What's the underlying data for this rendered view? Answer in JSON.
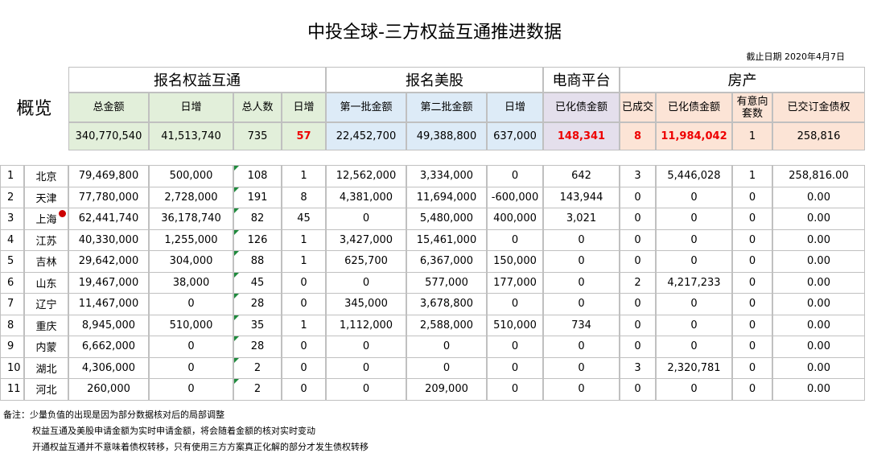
{
  "title": "中投全球-三方权益互通推进数据",
  "date": "截止日期 2020年4月7日",
  "summary": {
    "label": "概览",
    "groups": [
      "报名权益互通",
      "报名美股",
      "电商平台",
      "房产"
    ],
    "headers": [
      "总金额",
      "日增",
      "总人数",
      "日增",
      "第一批金额",
      "第二批金额",
      "日增",
      "已化债金额",
      "已成交",
      "已化债金额",
      "有意向套数",
      "已交订金债权"
    ],
    "values": [
      "340,770,540",
      "41,513,740",
      "735",
      "57",
      "22,452,700",
      "49,388,800",
      "637,000",
      "148,341",
      "8",
      "11,984,042",
      "1",
      "258,816"
    ]
  },
  "table": {
    "rows": [
      [
        "1",
        "北京",
        "79,469,800",
        "500,000",
        "108",
        "1",
        "12,562,000",
        "3,334,000",
        "0",
        "642",
        "3",
        "5,446,028",
        "1",
        "258,816.00"
      ],
      [
        "2",
        "天津",
        "77,780,000",
        "2,728,000",
        "191",
        "8",
        "4,381,000",
        "11,694,000",
        "-600,000",
        "143,944",
        "0",
        "0",
        "0",
        "0.00"
      ],
      [
        "3",
        "上海",
        "62,441,740",
        "36,178,740",
        "82",
        "45",
        "0",
        "5,480,000",
        "400,000",
        "3,021",
        "0",
        "0",
        "0",
        "0.00"
      ],
      [
        "4",
        "江苏",
        "40,330,000",
        "1,255,000",
        "126",
        "1",
        "3,427,000",
        "15,461,000",
        "0",
        "0",
        "0",
        "0",
        "0",
        "0.00"
      ],
      [
        "5",
        "吉林",
        "29,642,000",
        "304,000",
        "88",
        "1",
        "625,700",
        "6,367,000",
        "150,000",
        "0",
        "0",
        "0",
        "0",
        "0.00"
      ],
      [
        "6",
        "山东",
        "19,467,000",
        "38,000",
        "45",
        "0",
        "0",
        "577,000",
        "177,000",
        "0",
        "2",
        "4,217,233",
        "0",
        "0.00"
      ],
      [
        "7",
        "辽宁",
        "11,467,000",
        "0",
        "28",
        "0",
        "345,000",
        "3,678,800",
        "0",
        "0",
        "0",
        "0",
        "0",
        "0.00"
      ],
      [
        "8",
        "重庆",
        "8,945,000",
        "510,000",
        "35",
        "1",
        "1,112,000",
        "2,588,000",
        "510,000",
        "734",
        "0",
        "0",
        "0",
        "0.00"
      ],
      [
        "9",
        "内蒙",
        "6,662,000",
        "0",
        "28",
        "0",
        "0",
        "0",
        "0",
        "0",
        "0",
        "0",
        "0",
        "0.00"
      ],
      [
        "10",
        "湖北",
        "4,306,000",
        "0",
        "2",
        "0",
        "0",
        "0",
        "0",
        "0",
        "3",
        "2,320,781",
        "0",
        "0.00"
      ],
      [
        "11",
        "河北",
        "260,000",
        "0",
        "2",
        "0",
        "0",
        "209,000",
        "0",
        "0",
        "0",
        "0",
        "0",
        "0.00"
      ]
    ]
  },
  "notes": [
    "备注：少量负值的出现是因为部分数据核对后的局部调整",
    "权益互通及美股申请金额为实时申请金额，将会随着金额的核对实时变动",
    "开通权益互通并不意味着债权转移，只有使用三方方案真正化解的部分才发生债权转移"
  ]
}
